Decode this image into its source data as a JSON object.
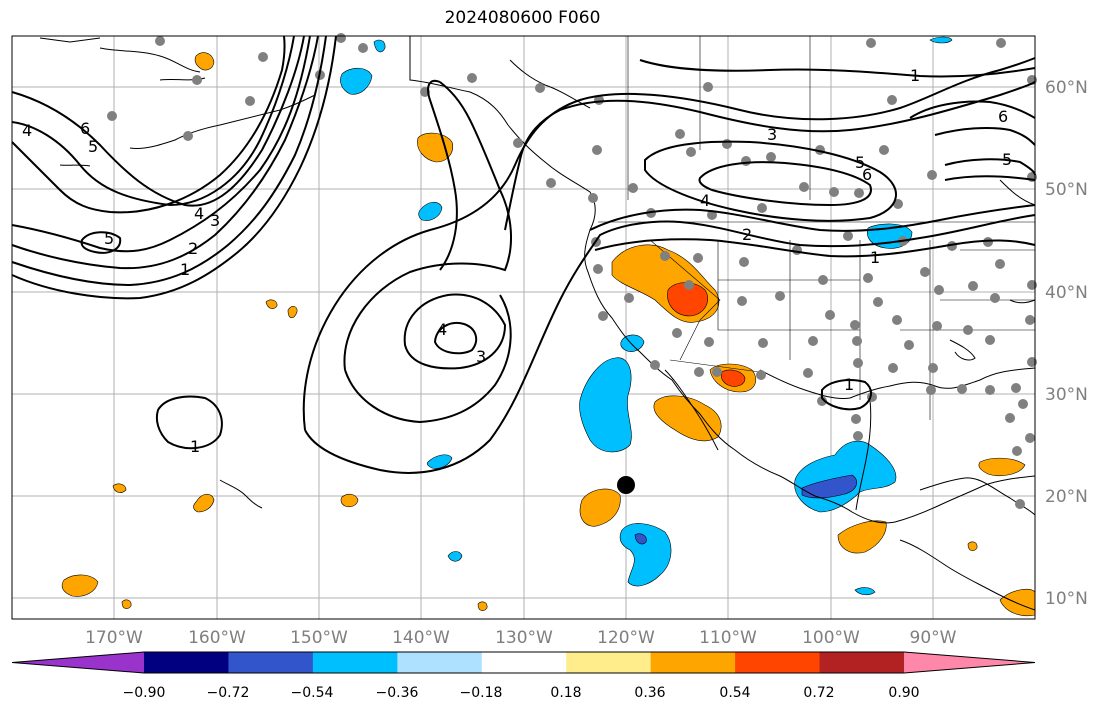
{
  "title": "2024080600 F060",
  "map": {
    "background": "#ffffff",
    "lat_labels": [
      "60°N",
      "50°N",
      "40°N",
      "30°N",
      "20°N",
      "10°N"
    ],
    "lon_labels": [
      "170°W",
      "160°W",
      "150°W",
      "140°W",
      "130°W",
      "120°W",
      "110°W",
      "100°W",
      "90°W"
    ],
    "contour_labels": [
      "1",
      "2",
      "3",
      "4",
      "5",
      "6"
    ],
    "gridlines": true
  },
  "colorbar": {
    "ticks": [
      "−0.90",
      "−0.72",
      "−0.54",
      "−0.36",
      "−0.18",
      "0.18",
      "0.36",
      "0.54",
      "0.72",
      "0.90"
    ],
    "colors": [
      "#9933cc",
      "#000080",
      "#3355cc",
      "#00bfff",
      "#aee0ff",
      "#ffffff",
      "#ffec8b",
      "#ffa500",
      "#ff4500",
      "#b22222",
      "#ff88aa"
    ]
  }
}
